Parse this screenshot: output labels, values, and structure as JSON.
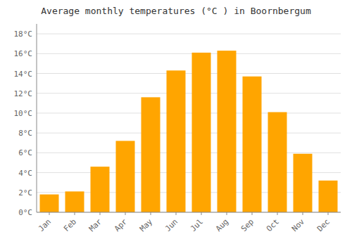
{
  "chart_data": {
    "type": "bar",
    "title": "Average monthly temperatures (°C ) in Boornbergum",
    "categories": [
      "Jan",
      "Feb",
      "Mar",
      "Apr",
      "May",
      "Jun",
      "Jul",
      "Aug",
      "Sep",
      "Oct",
      "Nov",
      "Dec"
    ],
    "values": [
      1.8,
      2.1,
      4.6,
      7.2,
      11.6,
      14.3,
      16.1,
      16.3,
      13.7,
      10.1,
      5.9,
      3.2
    ],
    "color": "#FFA500",
    "ylim": [
      0,
      19.0
    ],
    "yticks": [
      {
        "value": 0,
        "label": "0°C"
      },
      {
        "value": 2,
        "label": "2°C"
      },
      {
        "value": 4,
        "label": "4°C"
      },
      {
        "value": 6,
        "label": "6°C"
      },
      {
        "value": 8,
        "label": "8°C"
      },
      {
        "value": 10,
        "label": "10°C"
      },
      {
        "value": 12,
        "label": "12°C"
      },
      {
        "value": 14,
        "label": "14°C"
      },
      {
        "value": 16,
        "label": "16°C"
      },
      {
        "value": 18,
        "label": "18°C"
      }
    ],
    "grid": true
  }
}
